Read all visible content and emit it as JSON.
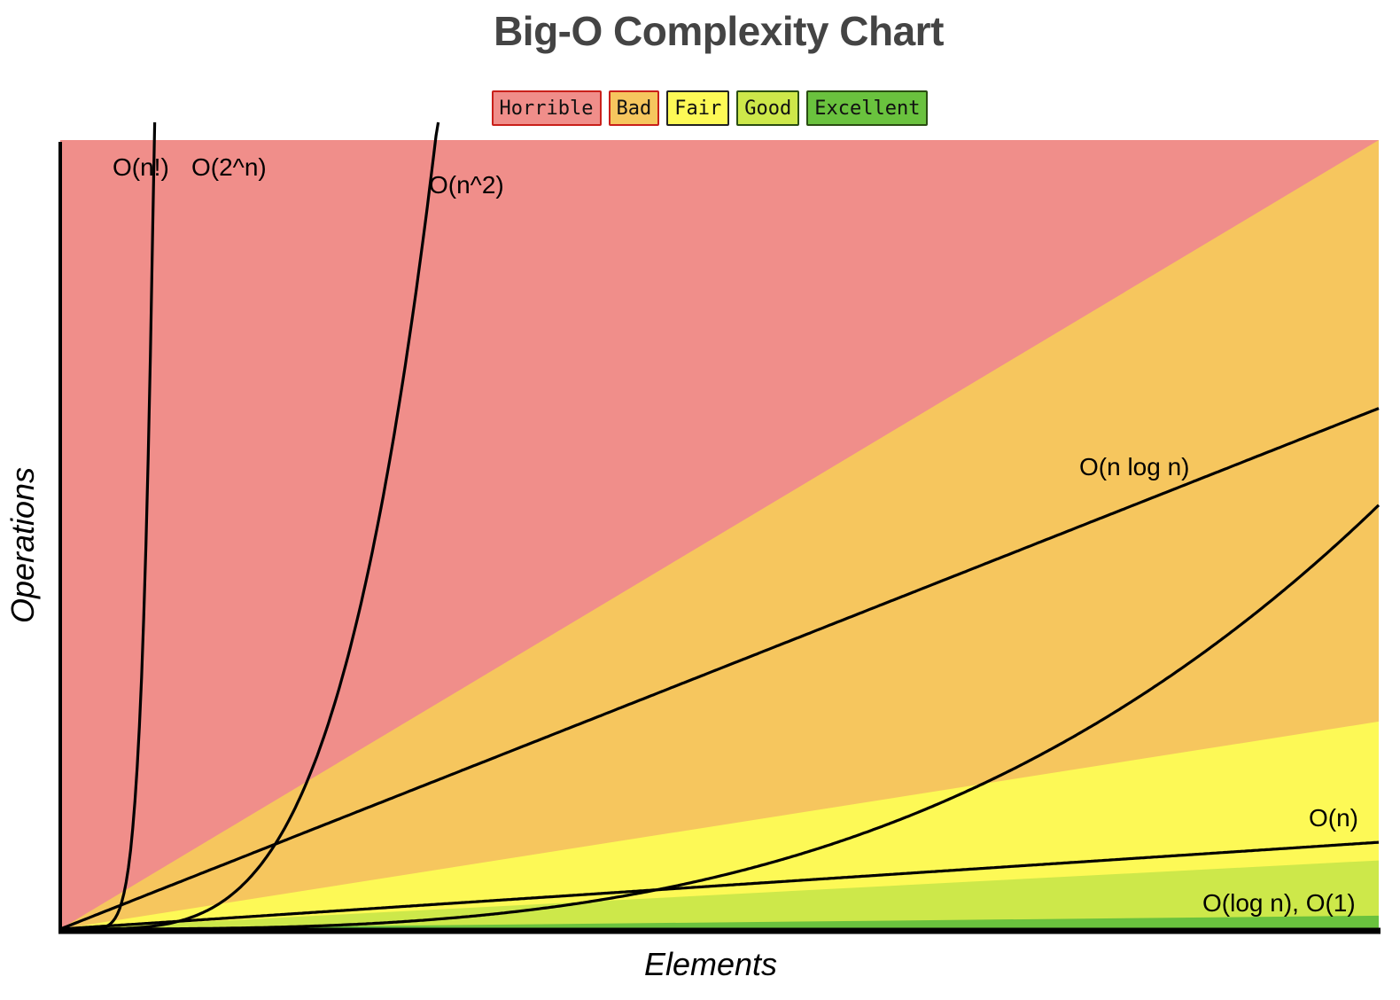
{
  "chart_data": {
    "type": "area",
    "title": "Big-O Complexity Chart",
    "xlabel": "Elements",
    "ylabel": "Operations",
    "grid": false,
    "legend_position": "top-center",
    "xlim": [
      0,
      100
    ],
    "ylim": [
      0,
      100
    ],
    "legend": [
      {
        "label": "Horrible",
        "color": "#f08e8a",
        "border": "#c9201a"
      },
      {
        "label": "Bad",
        "color": "#f6c65e",
        "border": "#c9201a"
      },
      {
        "label": "Fair",
        "color": "#fdf956",
        "border": "#222222"
      },
      {
        "label": "Good",
        "color": "#cde84a",
        "border": "#2a4d12"
      },
      {
        "label": "Excellent",
        "color": "#6ac23e",
        "border": "#2a4d12"
      }
    ],
    "regions": [
      {
        "name": "Horrible",
        "color": "#f08e8a"
      },
      {
        "name": "Bad",
        "color": "#f6c65e",
        "upper_slope": 1.0
      },
      {
        "name": "Fair",
        "color": "#fdf956",
        "upper_slope": 0.263
      },
      {
        "name": "Good",
        "color": "#cde84a",
        "upper_slope": 0.087
      },
      {
        "name": "Excellent",
        "color": "#6ac23e",
        "upper_slope": 0.017
      }
    ],
    "series": [
      {
        "name": "O(n!)",
        "function": "factorial"
      },
      {
        "name": "O(2^n)",
        "function": "exponential"
      },
      {
        "name": "O(n^2)",
        "function": "quadratic"
      },
      {
        "name": "O(n log n)",
        "function": "nlogn"
      },
      {
        "name": "O(n)",
        "function": "linear"
      },
      {
        "name": "O(log n), O(1)",
        "function": "constant"
      }
    ]
  }
}
